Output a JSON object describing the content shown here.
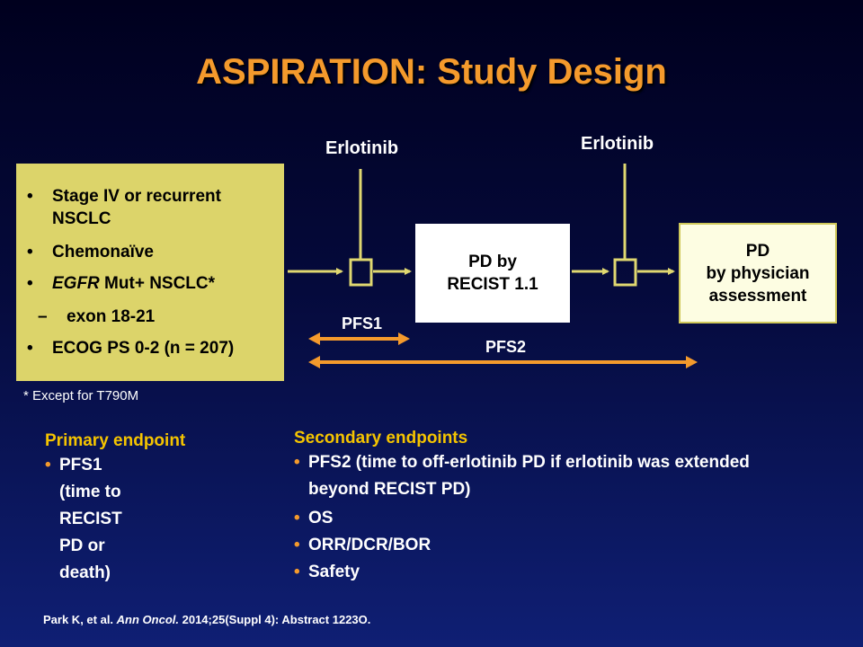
{
  "title": "ASPIRATION: Study Design",
  "colors": {
    "accent_orange": "#f49a2c",
    "box_yellow": "#dcd46a",
    "line_yellow": "#e0d870",
    "endpoint_yellow": "#f5c400"
  },
  "diagram": {
    "drug_label_1": "Erlotinib",
    "drug_label_2": "Erlotinib",
    "criteria": [
      {
        "bullet": "•",
        "line1": "Stage IV or recurrent",
        "line2": "NSCLC"
      },
      {
        "bullet": "•",
        "line1": "Chemonaïve"
      },
      {
        "bullet": "•",
        "italic": "EGFR",
        "rest": " Mut+ NSCLC*"
      },
      {
        "bullet": "–",
        "line1": "exon 18-21"
      },
      {
        "bullet": "•",
        "line1": "ECOG PS 0-2 (n = 207)"
      }
    ],
    "pd_recist": {
      "line1": "PD by",
      "line2": "RECIST 1.1"
    },
    "pd_physician": {
      "line1": "PD",
      "line2": "by physician",
      "line3": "assessment"
    },
    "pfs1_label": "PFS1",
    "pfs2_label": "PFS2",
    "footnote": "* Except for T790M"
  },
  "primary_endpoint": {
    "heading": "Primary endpoint",
    "items": [
      {
        "bullet": "•",
        "line1": "PFS1 (time to RECIST",
        "line2": "PD or death)"
      }
    ]
  },
  "secondary_endpoints": {
    "heading": "Secondary endpoints",
    "items": [
      {
        "bullet": "•",
        "line1": "PFS2 (time to off-erlotinib PD if erlotinib was extended",
        "line2": "beyond RECIST PD)"
      },
      {
        "bullet": "•",
        "line1": "OS"
      },
      {
        "bullet": "•",
        "line1": "ORR/DCR/BOR"
      },
      {
        "bullet": "•",
        "line1": "Safety"
      }
    ]
  },
  "citation": {
    "authors": "Park K, et al. ",
    "journal": "Ann Oncol.",
    "details": " 2014;25(Suppl 4): Abstract 1223O."
  }
}
